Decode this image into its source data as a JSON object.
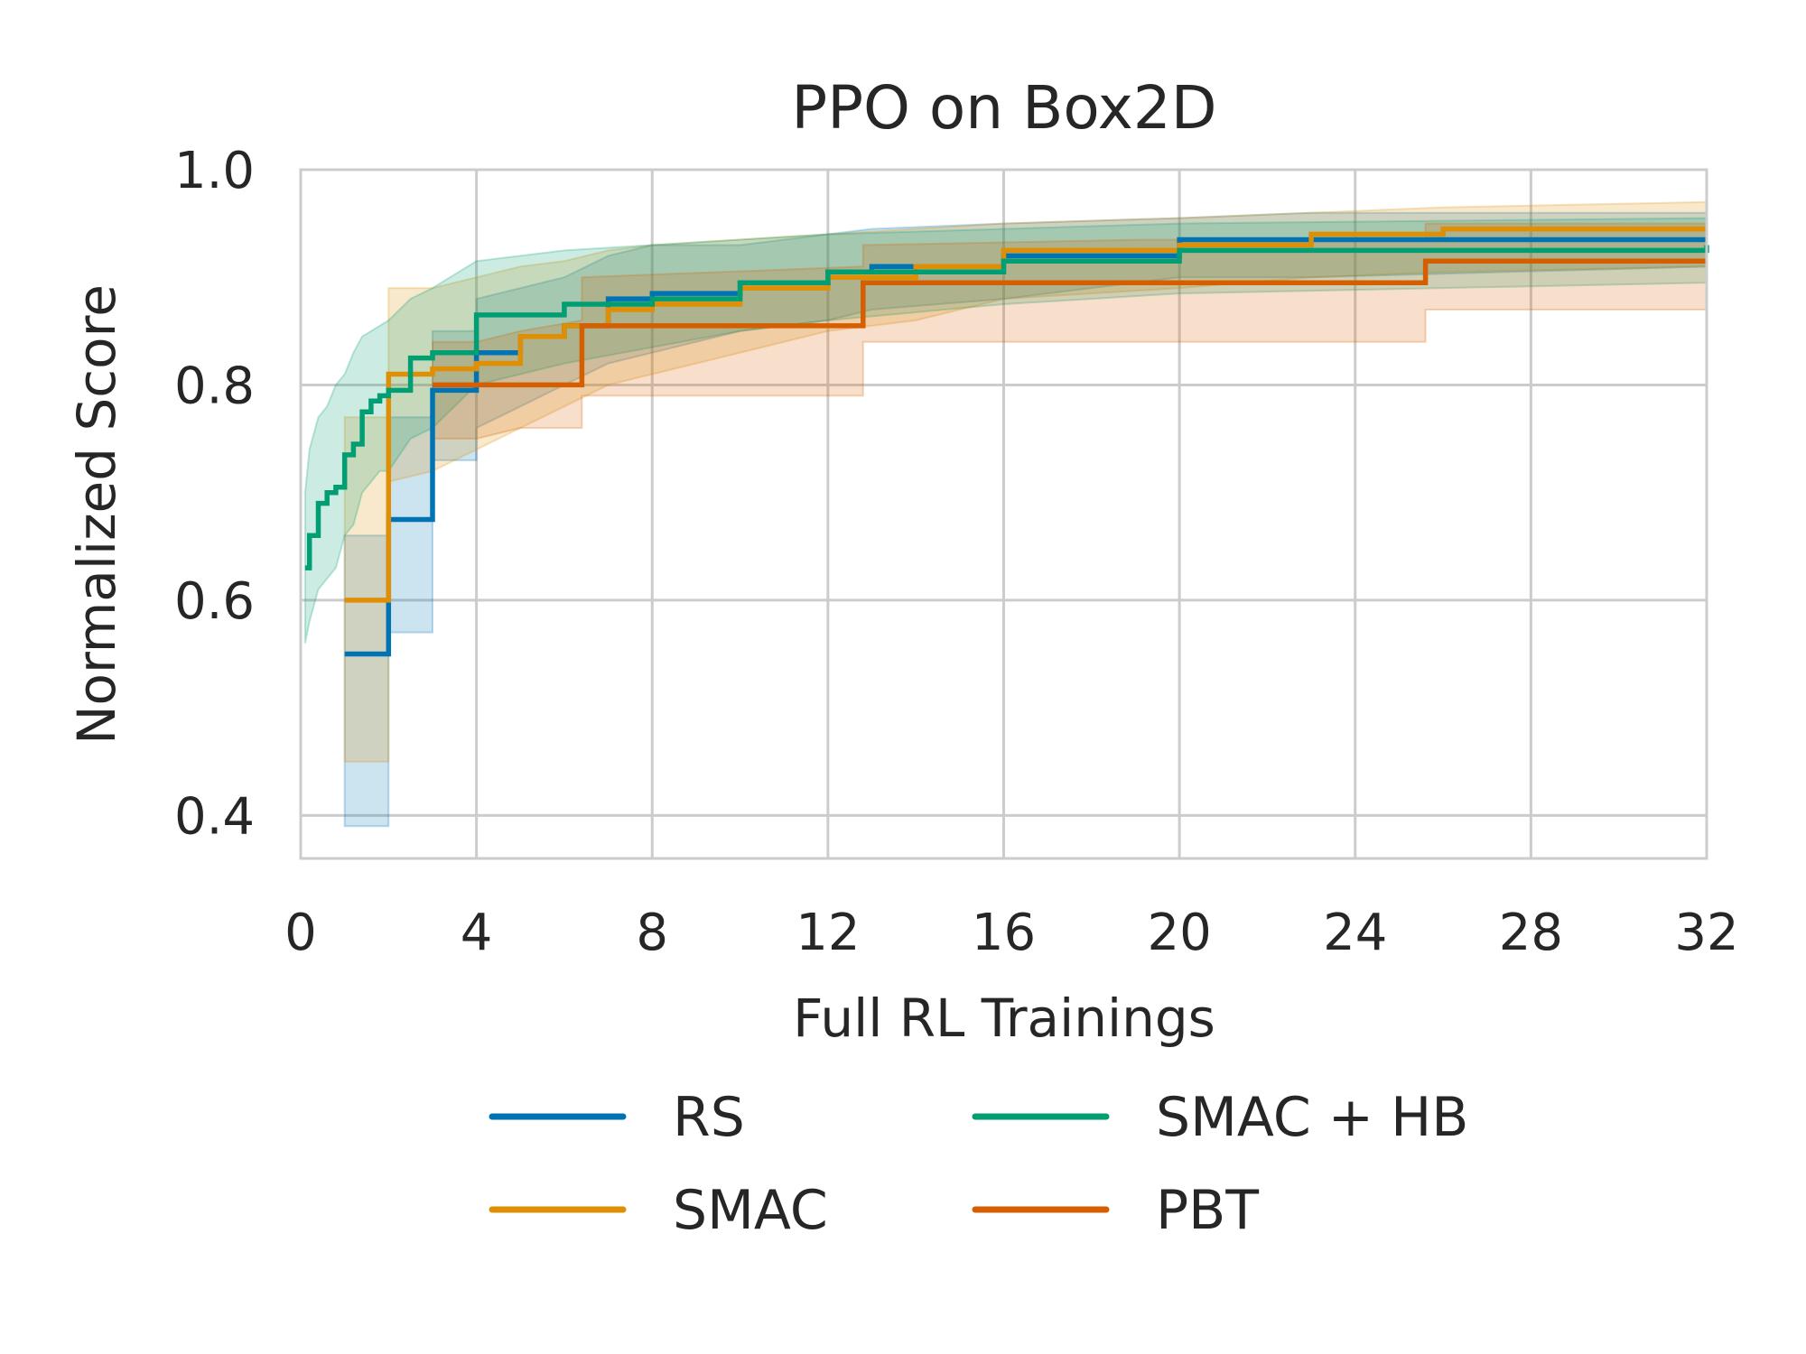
{
  "chart_data": {
    "type": "line",
    "title": "PPO on Box2D",
    "xlabel": "Full RL Trainings",
    "ylabel": "Normalized Score",
    "xlim": [
      0,
      32
    ],
    "ylim": [
      0.36,
      1.0
    ],
    "xticks": [
      0,
      4,
      8,
      12,
      16,
      20,
      24,
      28,
      32
    ],
    "xtick_labels": [
      "0",
      "4",
      "8",
      "12",
      "16",
      "20",
      "24",
      "28",
      "32"
    ],
    "yticks": [
      0.4,
      0.6,
      0.8,
      1.0
    ],
    "ytick_labels": [
      "0.4",
      "0.6",
      "0.8",
      "1.0"
    ],
    "grid": true,
    "legend": {
      "placement": "bottom-center",
      "columns": 2,
      "order": [
        "RS",
        "SMAC",
        "SMAC + HB",
        "PBT"
      ]
    },
    "series": [
      {
        "name": "RS",
        "color": "#0173b2",
        "x": [
          1,
          2,
          2,
          3,
          3,
          4,
          4,
          5,
          6,
          7,
          8,
          10,
          12,
          13,
          16,
          20,
          23,
          32
        ],
        "y": [
          0.55,
          0.55,
          0.675,
          0.675,
          0.795,
          0.795,
          0.83,
          0.845,
          0.855,
          0.88,
          0.885,
          0.895,
          0.905,
          0.91,
          0.92,
          0.935,
          0.935,
          0.935
        ],
        "lower": [
          0.39,
          0.39,
          0.57,
          0.57,
          0.73,
          0.73,
          0.76,
          0.78,
          0.8,
          0.82,
          0.83,
          0.85,
          0.86,
          0.87,
          0.88,
          0.9,
          0.9,
          0.91
        ],
        "upper": [
          0.66,
          0.66,
          0.77,
          0.77,
          0.85,
          0.85,
          0.88,
          0.89,
          0.9,
          0.92,
          0.93,
          0.93,
          0.94,
          0.945,
          0.95,
          0.955,
          0.96,
          0.96
        ]
      },
      {
        "name": "SMAC",
        "color": "#de8f05",
        "x": [
          1,
          2,
          2,
          3,
          4,
          5,
          6,
          7,
          8,
          10,
          12,
          14,
          16,
          20,
          23,
          26,
          32
        ],
        "y": [
          0.6,
          0.6,
          0.81,
          0.815,
          0.82,
          0.845,
          0.855,
          0.87,
          0.875,
          0.89,
          0.9,
          0.91,
          0.925,
          0.93,
          0.94,
          0.945,
          0.945
        ],
        "lower": [
          0.45,
          0.45,
          0.71,
          0.72,
          0.74,
          0.76,
          0.78,
          0.8,
          0.81,
          0.83,
          0.85,
          0.86,
          0.88,
          0.89,
          0.9,
          0.905,
          0.91
        ],
        "upper": [
          0.77,
          0.77,
          0.89,
          0.89,
          0.9,
          0.91,
          0.915,
          0.925,
          0.93,
          0.935,
          0.94,
          0.945,
          0.95,
          0.955,
          0.96,
          0.965,
          0.97
        ]
      },
      {
        "name": "SMAC + HB",
        "color": "#029e73",
        "x": [
          0.1,
          0.2,
          0.4,
          0.6,
          0.8,
          1.0,
          1.2,
          1.4,
          1.6,
          1.8,
          2.0,
          2.5,
          3.0,
          4.0,
          5.0,
          6.0,
          8.0,
          10,
          12,
          16,
          20,
          32
        ],
        "y": [
          0.63,
          0.66,
          0.69,
          0.7,
          0.705,
          0.735,
          0.745,
          0.775,
          0.785,
          0.79,
          0.795,
          0.825,
          0.83,
          0.865,
          0.865,
          0.875,
          0.88,
          0.895,
          0.905,
          0.915,
          0.925,
          0.93
        ],
        "lower": [
          0.56,
          0.58,
          0.61,
          0.62,
          0.63,
          0.66,
          0.67,
          0.7,
          0.71,
          0.72,
          0.72,
          0.75,
          0.76,
          0.8,
          0.81,
          0.82,
          0.835,
          0.85,
          0.86,
          0.875,
          0.885,
          0.895
        ],
        "upper": [
          0.7,
          0.74,
          0.77,
          0.78,
          0.8,
          0.81,
          0.83,
          0.845,
          0.85,
          0.855,
          0.86,
          0.88,
          0.89,
          0.915,
          0.92,
          0.925,
          0.93,
          0.935,
          0.94,
          0.945,
          0.95,
          0.955
        ]
      },
      {
        "name": "PBT",
        "color": "#d55e00",
        "x": [
          3,
          4,
          5,
          6.4,
          6.4,
          12.8,
          12.8,
          19.2,
          25.6,
          25.6,
          32
        ],
        "y": [
          0.8,
          0.8,
          0.8,
          0.8,
          0.855,
          0.855,
          0.895,
          0.895,
          0.895,
          0.915,
          0.915
        ],
        "lower": [
          0.75,
          0.75,
          0.76,
          0.76,
          0.79,
          0.79,
          0.84,
          0.84,
          0.84,
          0.87,
          0.87
        ],
        "upper": [
          0.84,
          0.84,
          0.85,
          0.86,
          0.9,
          0.91,
          0.93,
          0.935,
          0.935,
          0.95,
          0.95
        ]
      }
    ]
  }
}
